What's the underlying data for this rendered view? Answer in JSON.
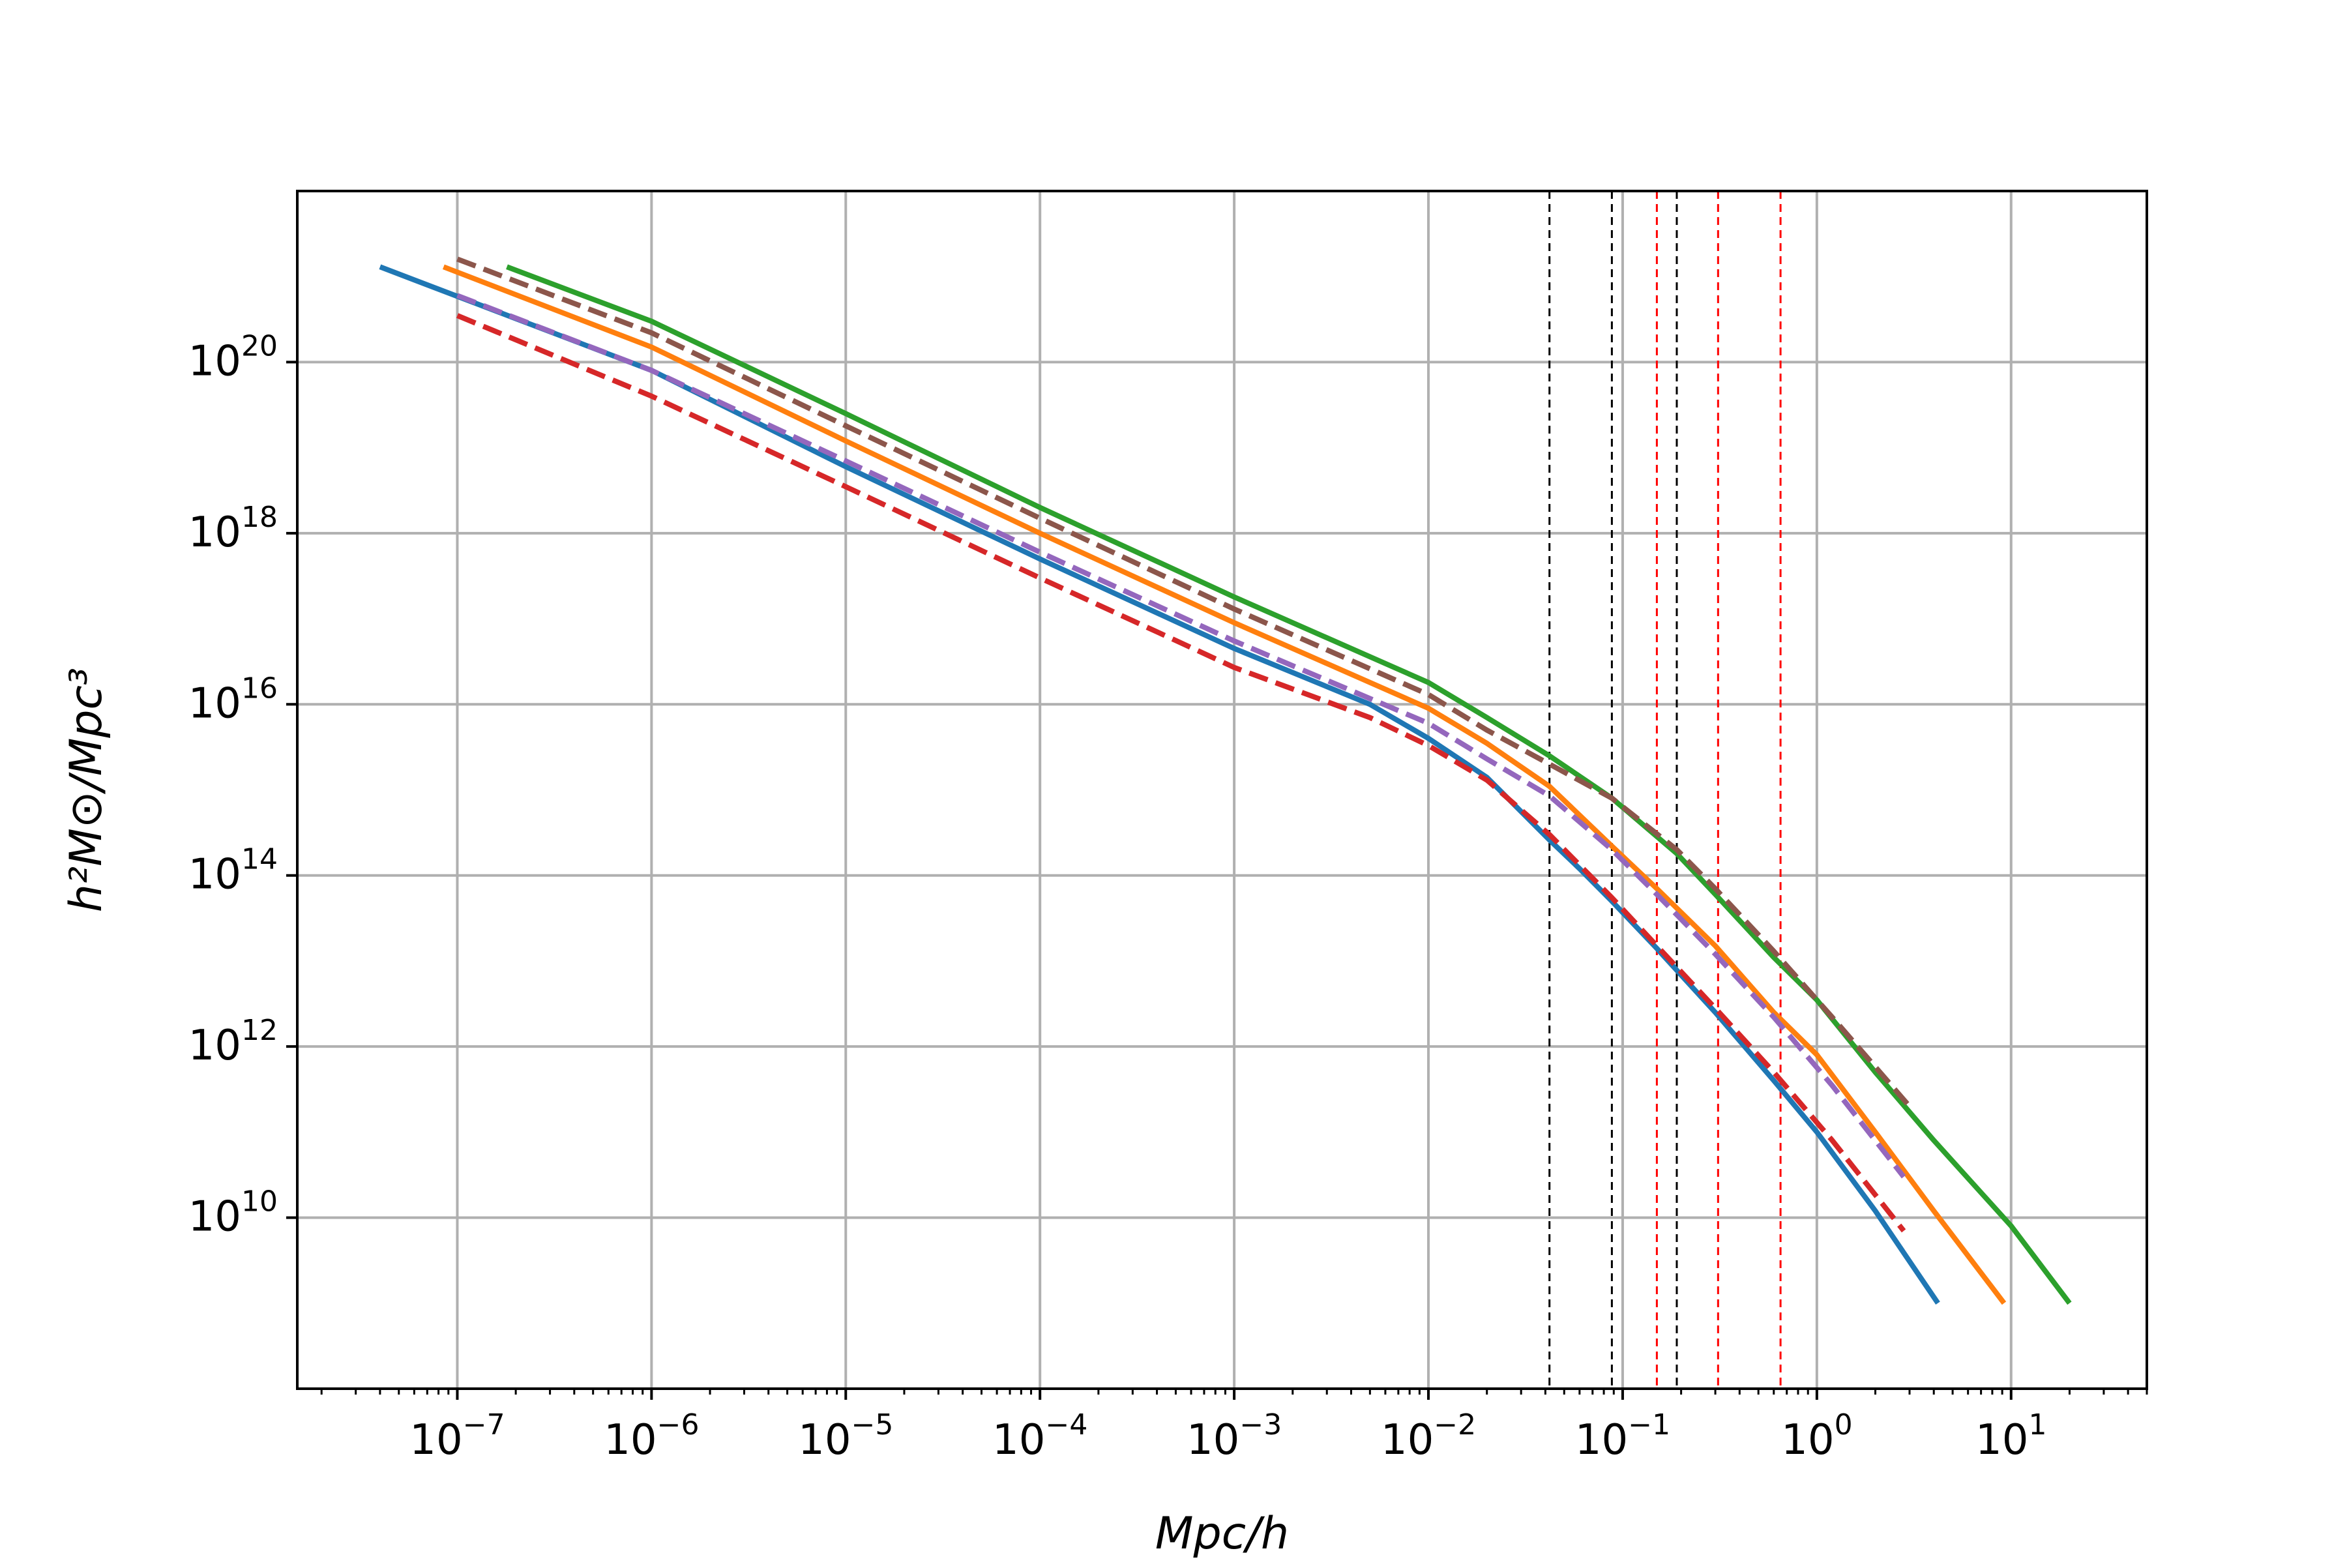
{
  "chart_data": {
    "type": "line",
    "xscale": "log",
    "yscale": "log",
    "xlabel": "Mpc/h",
    "ylabel": "h²M⊙/Mpc³",
    "xlim": [
      1.5e-08,
      50
    ],
    "ylim": [
      100000000.0,
      1e+22
    ],
    "grid": true,
    "x_ticks": [
      {
        "value": 1e-07,
        "base": "10",
        "exp": "−7"
      },
      {
        "value": 1e-06,
        "base": "10",
        "exp": "−6"
      },
      {
        "value": 1e-05,
        "base": "10",
        "exp": "−5"
      },
      {
        "value": 0.0001,
        "base": "10",
        "exp": "−4"
      },
      {
        "value": 0.001,
        "base": "10",
        "exp": "−3"
      },
      {
        "value": 0.01,
        "base": "10",
        "exp": "−2"
      },
      {
        "value": 0.1,
        "base": "10",
        "exp": "−1"
      },
      {
        "value": 1,
        "base": "10",
        "exp": "0"
      },
      {
        "value": 10,
        "base": "10",
        "exp": "1"
      }
    ],
    "y_ticks": [
      {
        "value": 10000000000.0,
        "base": "10",
        "exp": "10"
      },
      {
        "value": 1000000000000.0,
        "base": "10",
        "exp": "12"
      },
      {
        "value": 100000000000000.0,
        "base": "10",
        "exp": "14"
      },
      {
        "value": 1e+16,
        "base": "10",
        "exp": "16"
      },
      {
        "value": 1e+18,
        "base": "10",
        "exp": "18"
      },
      {
        "value": 1e+20,
        "base": "10",
        "exp": "20"
      }
    ],
    "vlines": [
      {
        "x": 0.042,
        "color": "#000000"
      },
      {
        "x": 0.088,
        "color": "#000000"
      },
      {
        "x": 0.19,
        "color": "#000000"
      },
      {
        "x": 0.15,
        "color": "#ff0000"
      },
      {
        "x": 0.31,
        "color": "#ff0000"
      },
      {
        "x": 0.65,
        "color": "#ff0000"
      }
    ],
    "series": [
      {
        "color": "#1f77b4",
        "dash": false,
        "x": [
          4e-08,
          1e-06,
          1e-05,
          0.0001,
          0.001,
          0.005,
          0.01,
          0.02,
          0.042,
          0.06,
          0.088,
          0.15,
          0.3,
          0.6,
          1,
          2,
          4.2
        ],
        "y": [
          1.3e+21,
          8e+19,
          6e+18,
          5e+17,
          4.5e+16,
          1e+16,
          4000000000000000.0,
          1400000000000000.0,
          260000000000000.0,
          120000000000000.0,
          50000000000000.0,
          14000000000000.0,
          2500000000000.0,
          400000000000.0,
          100000000000.0,
          12000000000.0,
          1000000000.0
        ]
      },
      {
        "color": "#ff7f0e",
        "dash": false,
        "x": [
          8.5e-08,
          1e-06,
          1e-05,
          0.0001,
          0.001,
          0.01,
          0.02,
          0.042,
          0.088,
          0.15,
          0.3,
          0.6,
          1,
          2,
          4,
          9.2
        ],
        "y": [
          1.3e+21,
          1.5e+20,
          1.2e+19,
          1e+18,
          9e+16,
          9000000000000000.0,
          3500000000000000.0,
          1100000000000000.0,
          220000000000000.0,
          70000000000000.0,
          15000000000000.0,
          2500000000000.0,
          800000000000.0,
          100000000000.0,
          12000000000.0,
          1000000000.0
        ]
      },
      {
        "color": "#2ca02c",
        "dash": false,
        "x": [
          1.8e-07,
          1e-06,
          1e-05,
          0.0001,
          0.001,
          0.01,
          0.02,
          0.042,
          0.088,
          0.19,
          0.3,
          0.6,
          1,
          2,
          4,
          10,
          20
        ],
        "y": [
          1.3e+21,
          3e+20,
          2.5e+19,
          2e+18,
          1.8e+17,
          1.8e+16,
          7000000000000000.0,
          2500000000000000.0,
          800000000000000.0,
          180000000000000.0,
          60000000000000.0,
          11000000000000.0,
          3500000000000.0,
          500000000000.0,
          80000000000.0,
          8000000000.0,
          1000000000.0
        ]
      },
      {
        "color": "#d62728",
        "dash": true,
        "x": [
          1e-07,
          1e-06,
          1e-05,
          0.0001,
          0.001,
          0.005,
          0.01,
          0.02,
          0.042,
          0.088,
          0.15,
          0.3,
          0.6,
          1.2,
          2.8
        ],
        "y": [
          3.5e+20,
          4e+19,
          3.5e+18,
          3e+17,
          2.7e+16,
          7000000000000000.0,
          3300000000000000.0,
          1300000000000000.0,
          300000000000000.0,
          55000000000000.0,
          15000000000000.0,
          2800000000000.0,
          500000000000.0,
          80000000000.0,
          7000000000.0
        ]
      },
      {
        "color": "#9467bd",
        "dash": true,
        "x": [
          1e-07,
          1e-06,
          1e-05,
          0.0001,
          0.001,
          0.01,
          0.02,
          0.042,
          0.088,
          0.15,
          0.3,
          0.6,
          1.2,
          2.8
        ],
        "y": [
          6e+20,
          8e+19,
          7e+18,
          6e+17,
          5.5e+16,
          6000000000000000.0,
          2300000000000000.0,
          850000000000000.0,
          200000000000000.0,
          60000000000000.0,
          12000000000000.0,
          2200000000000.0,
          350000000000.0,
          30000000000.0
        ]
      },
      {
        "color": "#8c564b",
        "dash": true,
        "x": [
          1e-07,
          1e-06,
          1e-05,
          0.0001,
          0.001,
          0.01,
          0.02,
          0.042,
          0.088,
          0.19,
          0.3,
          0.6,
          1.2,
          3
        ],
        "y": [
          1.6e+21,
          2.2e+20,
          1.8e+19,
          1.5e+18,
          1.3e+17,
          1.3e+16,
          5000000000000000.0,
          2000000000000000.0,
          800000000000000.0,
          200000000000000.0,
          70000000000000.0,
          13000000000000.0,
          2200000000000.0,
          200000000000.0
        ]
      }
    ]
  }
}
